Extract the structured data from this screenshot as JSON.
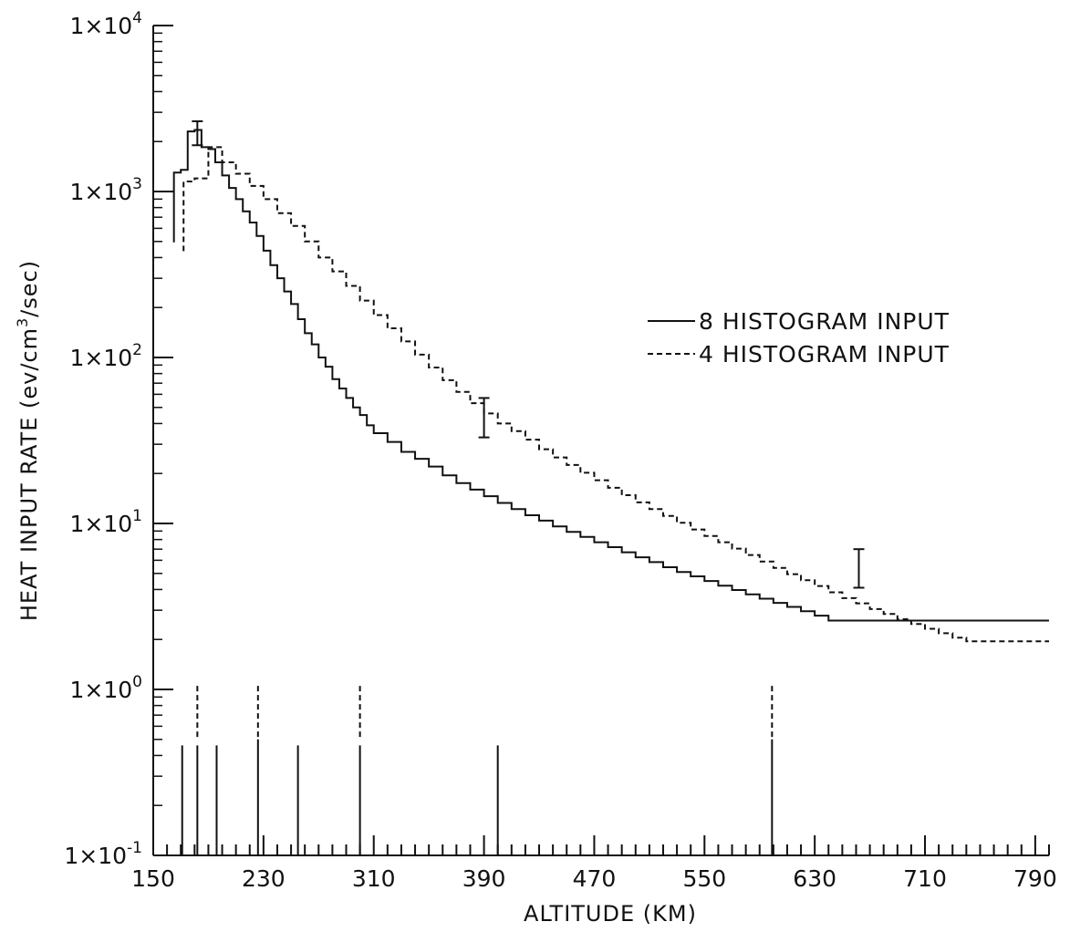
{
  "chart_data": {
    "type": "line",
    "title": "",
    "xlabel": "ALTITUDE (KM)",
    "ylabel": "HEAT INPUT RATE (ev/cm3/sec)",
    "ylabel_parts": {
      "main": "HEAT INPUT RATE (ev/cm",
      "sup": "3",
      "tail": "/sec)"
    },
    "x_axis": {
      "range": [
        150,
        800
      ],
      "tick_values": [
        150,
        230,
        310,
        390,
        470,
        550,
        630,
        710,
        790
      ],
      "tick_labels": [
        "150",
        "230",
        "310",
        "390",
        "470",
        "550",
        "630",
        "710",
        "790"
      ]
    },
    "y_axis": {
      "scale": "log",
      "range": [
        0.1,
        10000
      ],
      "tick_values": [
        0.1,
        1,
        10,
        100,
        1000,
        10000
      ],
      "tick_labels": [
        {
          "base": "1×10",
          "exp": "-1"
        },
        {
          "base": "1×10",
          "exp": "0"
        },
        {
          "base": "1×10",
          "exp": "1"
        },
        {
          "base": "1×10",
          "exp": "2"
        },
        {
          "base": "1×10",
          "exp": "3"
        },
        {
          "base": "1×10",
          "exp": "4"
        }
      ]
    },
    "grid": false,
    "legend": {
      "placement": "right"
    },
    "series": [
      {
        "name": "8 HISTOGRAM INPUT",
        "style": "solid",
        "color": "#111111",
        "x": [
          165,
          170,
          175,
          180,
          185,
          190,
          195,
          200,
          205,
          210,
          215,
          220,
          225,
          230,
          235,
          240,
          245,
          250,
          255,
          260,
          265,
          270,
          275,
          280,
          285,
          290,
          295,
          300,
          305,
          310,
          320,
          330,
          340,
          350,
          360,
          370,
          380,
          390,
          400,
          410,
          420,
          430,
          440,
          450,
          460,
          470,
          480,
          490,
          500,
          510,
          520,
          530,
          540,
          550,
          560,
          570,
          580,
          590,
          600,
          610,
          620,
          630,
          640,
          650,
          660,
          670,
          680,
          690,
          700,
          710,
          720,
          730,
          740,
          750,
          760,
          770,
          780,
          790,
          800
        ],
        "y": [
          1300,
          1350,
          2300,
          2350,
          1850,
          1800,
          1500,
          1250,
          1050,
          900,
          760,
          650,
          540,
          440,
          360,
          300,
          250,
          210,
          170,
          140,
          120,
          100,
          88,
          74,
          65,
          57,
          50,
          45,
          39,
          35,
          31,
          27,
          24.5,
          22,
          19.5,
          17.5,
          16,
          14.6,
          13.3,
          12.2,
          11.2,
          10.4,
          9.6,
          8.9,
          8.3,
          7.7,
          7.2,
          6.7,
          6.25,
          5.85,
          5.45,
          5.1,
          4.8,
          4.5,
          4.22,
          3.97,
          3.74,
          3.52,
          3.32,
          3.14,
          2.96,
          2.78,
          2.6,
          2.6,
          2.6,
          2.6,
          2.6,
          2.6,
          2.6,
          2.6,
          2.6,
          2.6,
          2.6,
          2.6,
          2.6,
          2.6,
          2.6,
          2.6,
          2.6
        ]
      },
      {
        "name": "4 HISTOGRAM INPUT",
        "style": "dashed",
        "color": "#111111",
        "x": [
          172,
          180,
          190,
          200,
          210,
          220,
          230,
          240,
          250,
          260,
          270,
          280,
          290,
          300,
          310,
          320,
          330,
          340,
          350,
          360,
          370,
          380,
          390,
          400,
          410,
          420,
          430,
          440,
          450,
          460,
          470,
          480,
          490,
          500,
          510,
          520,
          530,
          540,
          550,
          560,
          570,
          580,
          590,
          600,
          610,
          620,
          630,
          640,
          650,
          660,
          670,
          680,
          690,
          700,
          710,
          720,
          730,
          740,
          750,
          760,
          770,
          780,
          790,
          800
        ],
        "y": [
          1150,
          1200,
          1850,
          1500,
          1280,
          1080,
          900,
          740,
          620,
          500,
          400,
          330,
          270,
          220,
          180,
          150,
          125,
          104,
          87,
          73,
          62,
          53,
          46,
          40,
          36,
          32,
          28,
          25,
          22.5,
          20.2,
          18.2,
          16.4,
          14.8,
          13.4,
          12.2,
          11.1,
          10.1,
          9.2,
          8.4,
          7.7,
          7.05,
          6.45,
          5.9,
          5.4,
          4.95,
          4.55,
          4.2,
          3.85,
          3.55,
          3.3,
          3.05,
          2.85,
          2.65,
          2.48,
          2.32,
          2.18,
          2.05,
          1.95,
          1.95,
          1.95,
          1.95,
          1.95,
          1.95,
          1.95
        ]
      }
    ],
    "error_bars": [
      {
        "x": 182,
        "low": 1900,
        "high": 2650
      },
      {
        "x": 390,
        "low": 33,
        "high": 57
      },
      {
        "x": 662,
        "low": 4.1,
        "high": 7.0
      }
    ],
    "bin_markers": [
      {
        "x": 171,
        "style": "solid",
        "height_value": 0.46
      },
      {
        "x": 182,
        "style": "solid",
        "height_value": 0.46
      },
      {
        "x": 182,
        "style": "dashed",
        "height_value": 1.05
      },
      {
        "x": 196,
        "style": "solid",
        "height_value": 0.46
      },
      {
        "x": 226,
        "style": "solid",
        "height_value": 0.5
      },
      {
        "x": 226,
        "style": "dashed",
        "height_value": 1.05
      },
      {
        "x": 255,
        "style": "solid",
        "height_value": 0.46
      },
      {
        "x": 300,
        "style": "solid",
        "height_value": 0.46
      },
      {
        "x": 300,
        "style": "dashed",
        "height_value": 1.05
      },
      {
        "x": 400,
        "style": "solid",
        "height_value": 0.46
      },
      {
        "x": 599,
        "style": "solid",
        "height_value": 0.5
      },
      {
        "x": 599,
        "style": "dashed",
        "height_value": 1.05
      }
    ]
  }
}
